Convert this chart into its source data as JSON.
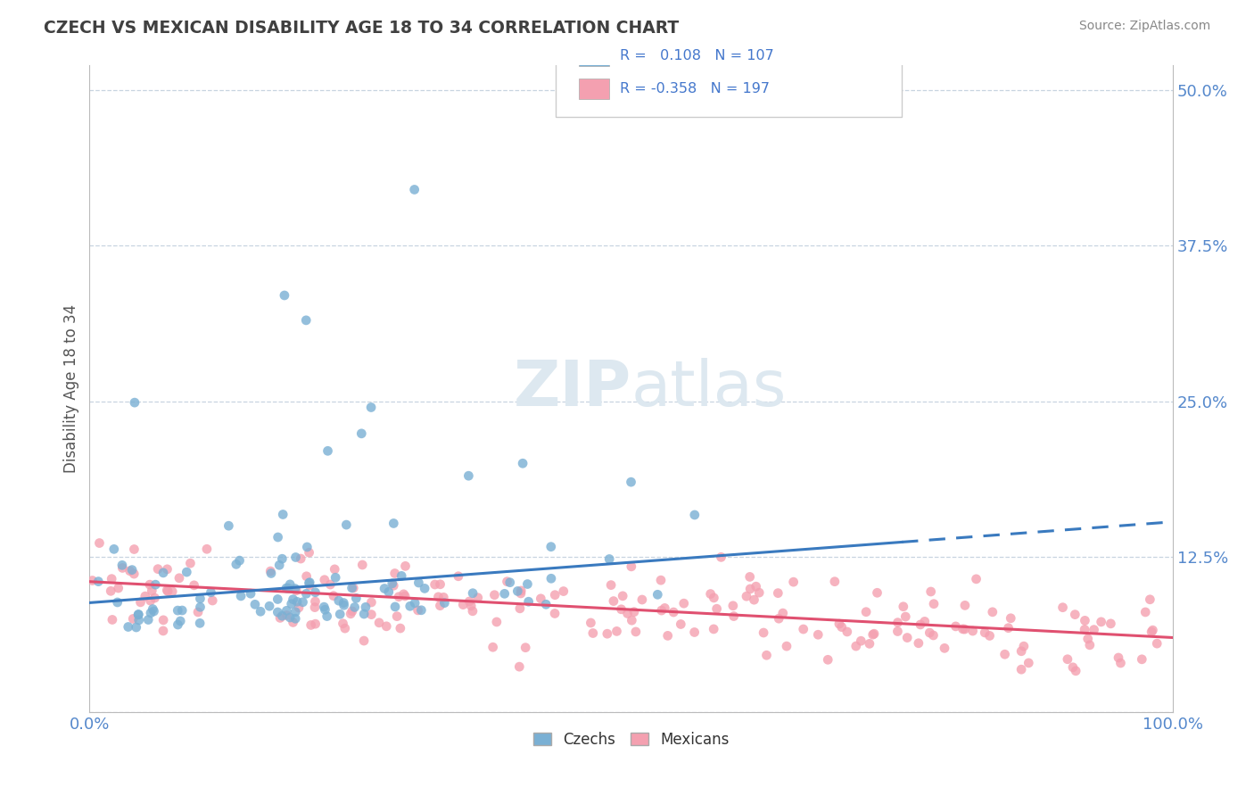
{
  "title": "CZECH VS MEXICAN DISABILITY AGE 18 TO 34 CORRELATION CHART",
  "source": "Source: ZipAtlas.com",
  "ylabel": "Disability Age 18 to 34",
  "xlim": [
    0.0,
    1.0
  ],
  "ylim": [
    0.0,
    0.52
  ],
  "czech_R": 0.108,
  "czech_N": 107,
  "mexican_R": -0.358,
  "mexican_N": 197,
  "czech_color": "#7ab0d4",
  "mexican_color": "#f4a0b0",
  "czech_line_color": "#3a7abf",
  "mexican_line_color": "#e05070",
  "background_color": "#ffffff",
  "grid_color": "#c8d4e0",
  "title_color": "#404040",
  "watermark_color": "#dde8f0",
  "legend_R_color": "#4477cc",
  "ytick_color": "#5588cc",
  "xtick_color": "#5588cc"
}
